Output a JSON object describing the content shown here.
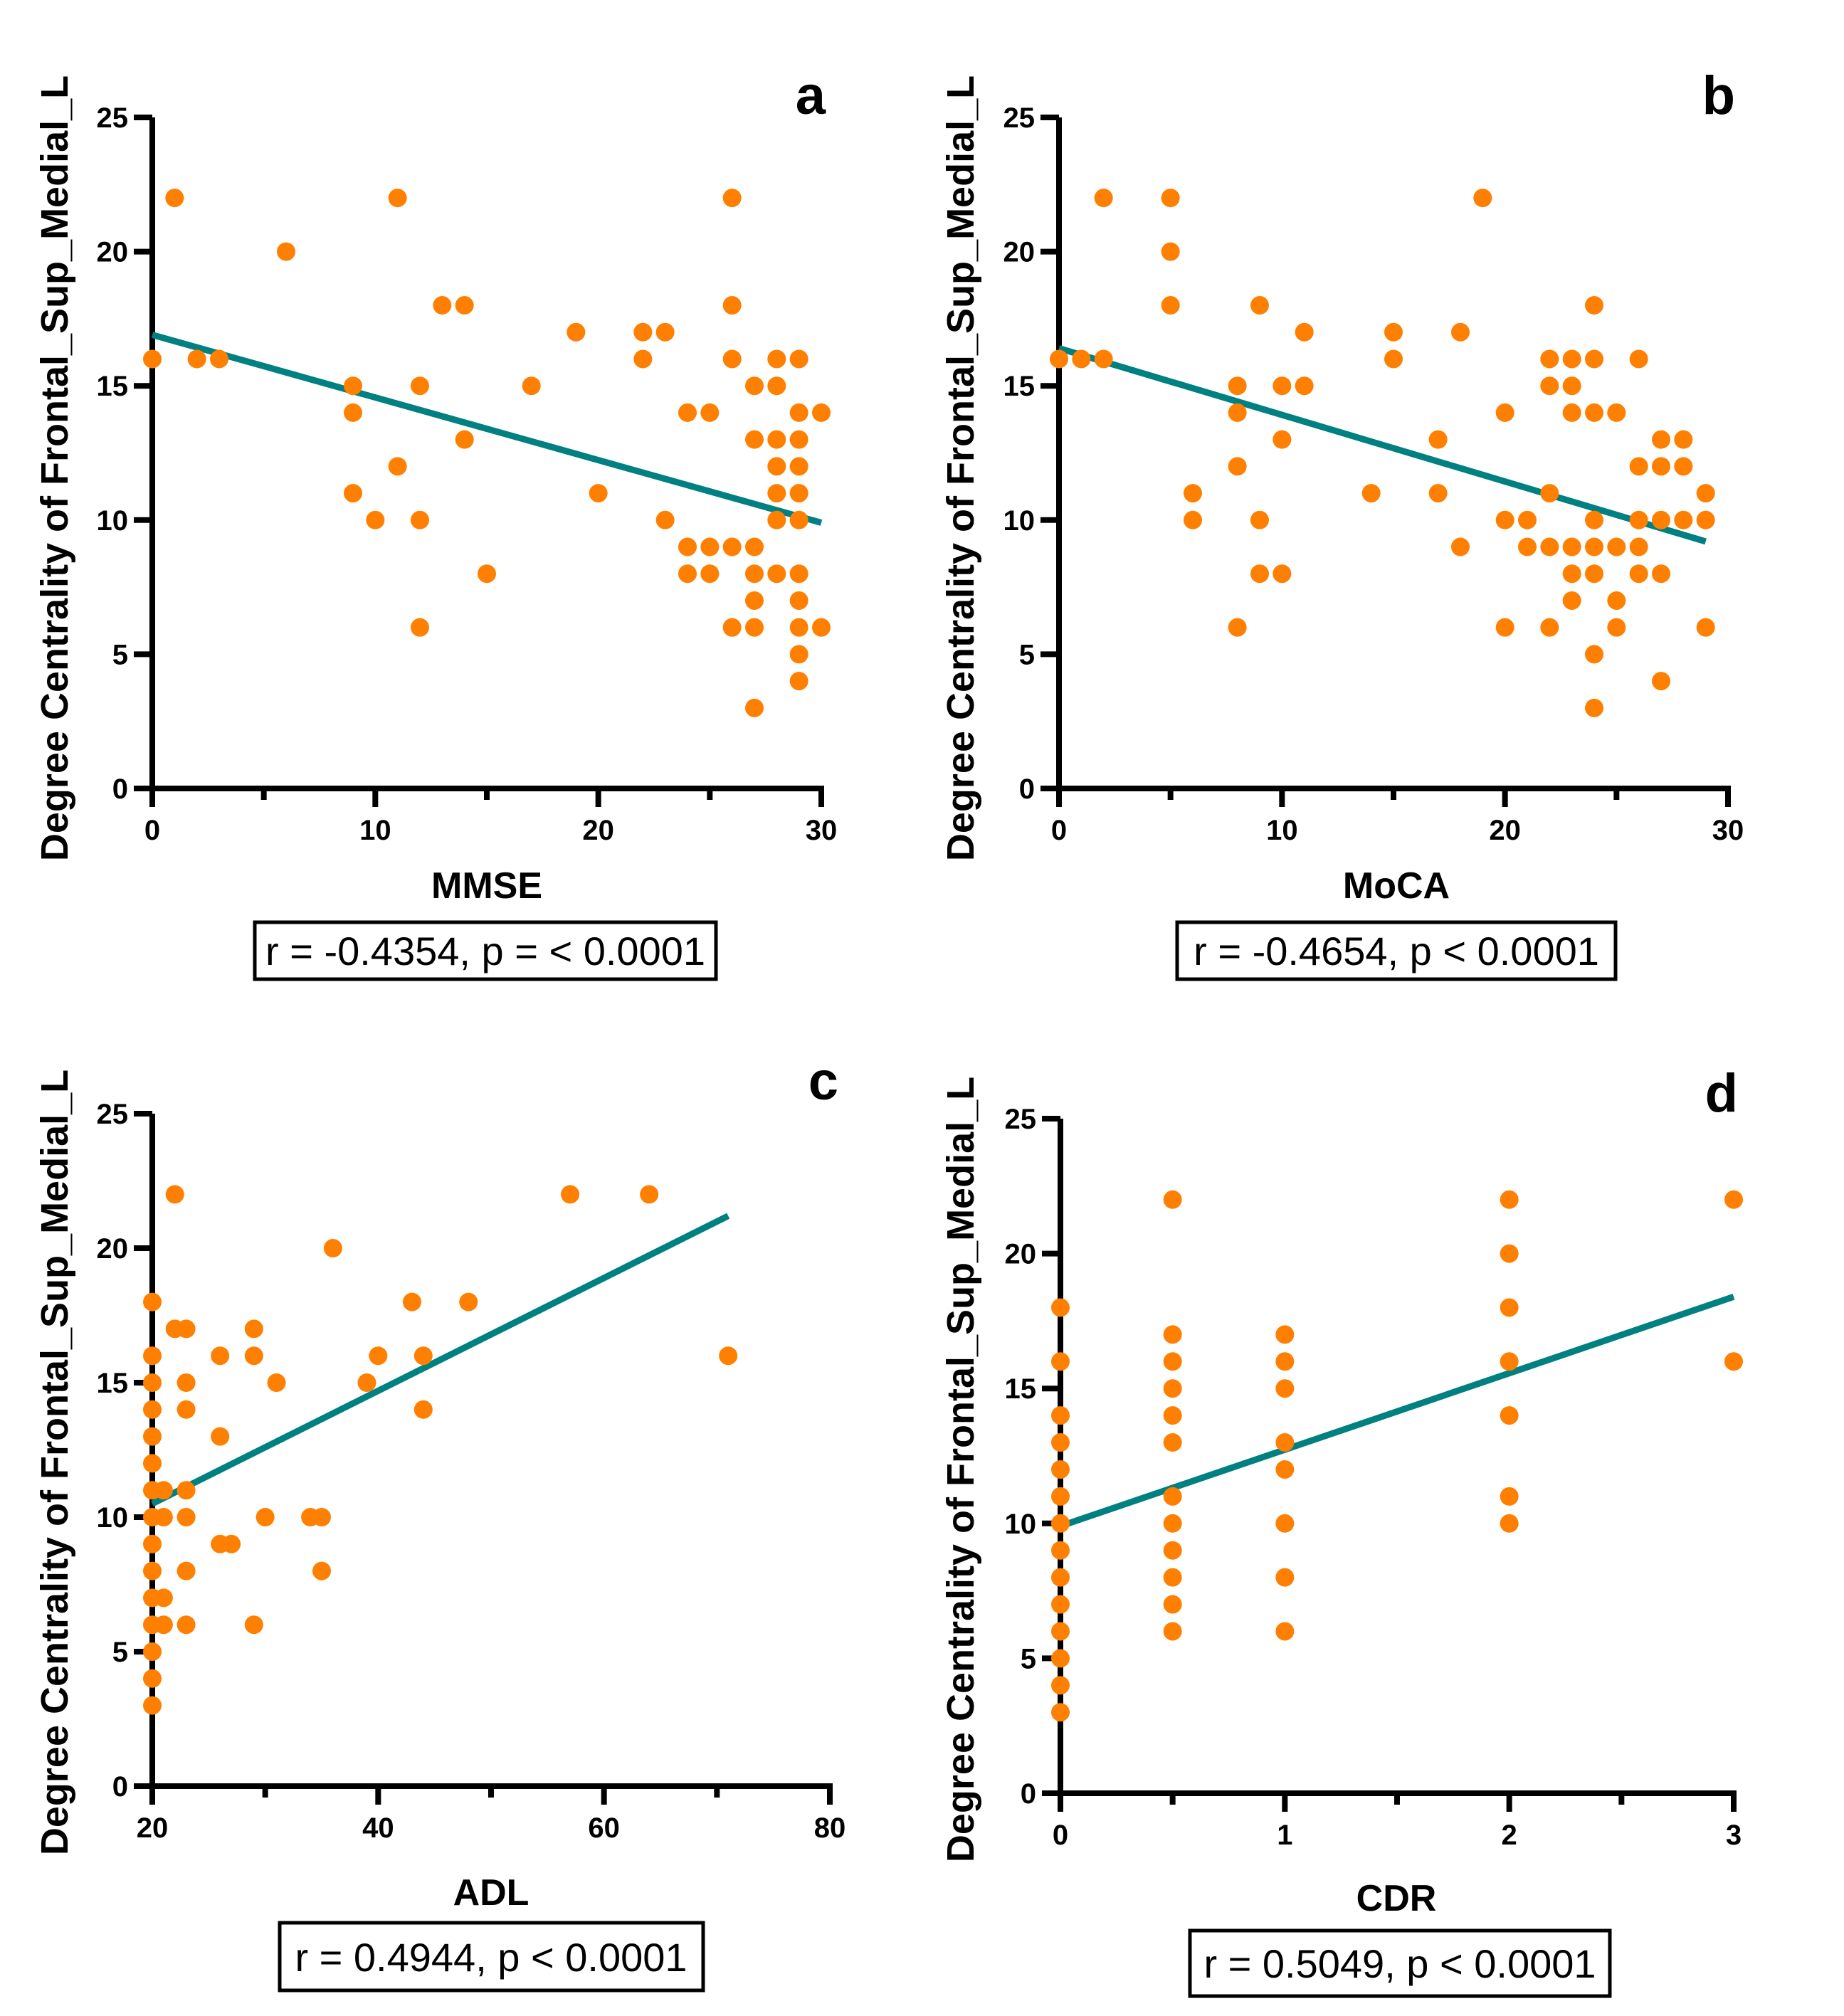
{
  "figure": {
    "colors": {
      "point": "#FF7F00",
      "regression_line": "#008080",
      "axis": "#000000"
    }
  },
  "chart_data": [
    {
      "panel": "a",
      "type": "scatter",
      "title": "",
      "xlabel": "MMSE",
      "ylabel": "Degree Centrality of Frontal_Sup_Medial_L",
      "xlim": [
        0,
        30
      ],
      "ylim": [
        0,
        25
      ],
      "xticks": [
        0,
        10,
        20,
        30
      ],
      "xminor": [
        5,
        15,
        25
      ],
      "yticks": [
        0,
        5,
        10,
        15,
        20,
        25
      ],
      "grid": false,
      "stat": "r = -0.4354, p = < 0.0001",
      "regression": {
        "x": [
          0,
          30
        ],
        "y": [
          16.9,
          9.9
        ]
      },
      "points": [
        [
          0,
          16
        ],
        [
          1,
          22
        ],
        [
          2,
          16
        ],
        [
          3,
          16
        ],
        [
          6,
          20
        ],
        [
          9,
          15
        ],
        [
          9,
          14
        ],
        [
          9,
          11
        ],
        [
          10,
          10
        ],
        [
          11,
          22
        ],
        [
          11,
          12
        ],
        [
          12,
          15
        ],
        [
          12,
          10
        ],
        [
          12,
          6
        ],
        [
          13,
          18
        ],
        [
          14,
          18
        ],
        [
          14,
          13
        ],
        [
          15,
          8
        ],
        [
          17,
          15
        ],
        [
          19,
          17
        ],
        [
          20,
          11
        ],
        [
          22,
          17
        ],
        [
          22,
          16
        ],
        [
          23,
          17
        ],
        [
          23,
          10
        ],
        [
          24,
          14
        ],
        [
          24,
          9
        ],
        [
          24,
          8
        ],
        [
          25,
          14
        ],
        [
          25,
          9
        ],
        [
          25,
          8
        ],
        [
          26,
          22
        ],
        [
          26,
          18
        ],
        [
          26,
          16
        ],
        [
          26,
          9
        ],
        [
          26,
          6
        ],
        [
          27,
          15
        ],
        [
          27,
          13
        ],
        [
          27,
          9
        ],
        [
          27,
          8
        ],
        [
          27,
          7
        ],
        [
          27,
          6
        ],
        [
          27,
          3
        ],
        [
          28,
          16
        ],
        [
          28,
          15
        ],
        [
          28,
          13
        ],
        [
          28,
          12
        ],
        [
          28,
          11
        ],
        [
          28,
          10
        ],
        [
          28,
          8
        ],
        [
          29,
          16
        ],
        [
          29,
          14
        ],
        [
          29,
          13
        ],
        [
          29,
          12
        ],
        [
          29,
          11
        ],
        [
          29,
          10
        ],
        [
          29,
          8
        ],
        [
          29,
          7
        ],
        [
          29,
          6
        ],
        [
          29,
          5
        ],
        [
          29,
          4
        ],
        [
          30,
          14
        ],
        [
          30,
          6
        ]
      ]
    },
    {
      "panel": "b",
      "type": "scatter",
      "title": "",
      "xlabel": "MoCA",
      "ylabel": "Degree Centrality of Frontal_Sup_Medial_L",
      "xlim": [
        0,
        30
      ],
      "ylim": [
        0,
        25
      ],
      "xticks": [
        0,
        10,
        20,
        30
      ],
      "xminor": [
        5,
        15,
        25
      ],
      "yticks": [
        0,
        5,
        10,
        15,
        20,
        25
      ],
      "grid": false,
      "stat": "r = -0.4654, p < 0.0001",
      "regression": {
        "x": [
          0,
          29
        ],
        "y": [
          16.4,
          9.2
        ]
      },
      "points": [
        [
          0,
          16
        ],
        [
          1,
          16
        ],
        [
          2,
          22
        ],
        [
          2,
          16
        ],
        [
          5,
          22
        ],
        [
          5,
          20
        ],
        [
          5,
          18
        ],
        [
          6,
          11
        ],
        [
          6,
          10
        ],
        [
          8,
          15
        ],
        [
          8,
          14
        ],
        [
          8,
          12
        ],
        [
          8,
          6
        ],
        [
          9,
          18
        ],
        [
          9,
          10
        ],
        [
          9,
          8
        ],
        [
          10,
          15
        ],
        [
          10,
          13
        ],
        [
          10,
          8
        ],
        [
          11,
          17
        ],
        [
          11,
          15
        ],
        [
          14,
          11
        ],
        [
          15,
          17
        ],
        [
          15,
          16
        ],
        [
          17,
          13
        ],
        [
          17,
          11
        ],
        [
          18,
          17
        ],
        [
          18,
          9
        ],
        [
          19,
          22
        ],
        [
          20,
          14
        ],
        [
          20,
          10
        ],
        [
          20,
          6
        ],
        [
          21,
          10
        ],
        [
          21,
          9
        ],
        [
          22,
          16
        ],
        [
          22,
          15
        ],
        [
          22,
          11
        ],
        [
          22,
          9
        ],
        [
          22,
          6
        ],
        [
          23,
          16
        ],
        [
          23,
          15
        ],
        [
          23,
          14
        ],
        [
          23,
          9
        ],
        [
          23,
          8
        ],
        [
          23,
          7
        ],
        [
          24,
          18
        ],
        [
          24,
          16
        ],
        [
          24,
          14
        ],
        [
          24,
          10
        ],
        [
          24,
          9
        ],
        [
          24,
          8
        ],
        [
          24,
          5
        ],
        [
          24,
          3
        ],
        [
          25,
          14
        ],
        [
          25,
          9
        ],
        [
          25,
          7
        ],
        [
          25,
          6
        ],
        [
          26,
          16
        ],
        [
          26,
          12
        ],
        [
          26,
          10
        ],
        [
          26,
          9
        ],
        [
          26,
          8
        ],
        [
          27,
          13
        ],
        [
          27,
          12
        ],
        [
          27,
          10
        ],
        [
          27,
          8
        ],
        [
          27,
          4
        ],
        [
          28,
          13
        ],
        [
          28,
          12
        ],
        [
          28,
          10
        ],
        [
          29,
          11
        ],
        [
          29,
          10
        ],
        [
          29,
          6
        ]
      ]
    },
    {
      "panel": "c",
      "type": "scatter",
      "title": "",
      "xlabel": "ADL",
      "ylabel": "Degree Centrality of Frontal_Sup_Medial_L",
      "xlim": [
        20,
        80
      ],
      "ylim": [
        0,
        25
      ],
      "xticks": [
        20,
        40,
        60,
        80
      ],
      "xminor": [
        30,
        50,
        70
      ],
      "yticks": [
        0,
        5,
        10,
        15,
        20,
        25
      ],
      "grid": false,
      "stat": "r = 0.4944, p < 0.0001",
      "regression": {
        "x": [
          20,
          71
        ],
        "y": [
          10.5,
          21.2
        ]
      },
      "points": [
        [
          20,
          18
        ],
        [
          20,
          16
        ],
        [
          20,
          15
        ],
        [
          20,
          14
        ],
        [
          20,
          13
        ],
        [
          20,
          12
        ],
        [
          20,
          11
        ],
        [
          20,
          10
        ],
        [
          20,
          9
        ],
        [
          20,
          8
        ],
        [
          20,
          7
        ],
        [
          20,
          6
        ],
        [
          20,
          5
        ],
        [
          20,
          4
        ],
        [
          20,
          3
        ],
        [
          21,
          11
        ],
        [
          21,
          10
        ],
        [
          21,
          7
        ],
        [
          21,
          6
        ],
        [
          22,
          22
        ],
        [
          22,
          17
        ],
        [
          23,
          17
        ],
        [
          23,
          15
        ],
        [
          23,
          14
        ],
        [
          23,
          11
        ],
        [
          23,
          10
        ],
        [
          23,
          8
        ],
        [
          23,
          6
        ],
        [
          26,
          16
        ],
        [
          26,
          13
        ],
        [
          26,
          9
        ],
        [
          27,
          9
        ],
        [
          29,
          17
        ],
        [
          29,
          16
        ],
        [
          29,
          6
        ],
        [
          30,
          10
        ],
        [
          31,
          15
        ],
        [
          34,
          10
        ],
        [
          35,
          10
        ],
        [
          35,
          8
        ],
        [
          36,
          20
        ],
        [
          39,
          15
        ],
        [
          40,
          16
        ],
        [
          43,
          18
        ],
        [
          44,
          16
        ],
        [
          44,
          14
        ],
        [
          48,
          18
        ],
        [
          57,
          22
        ],
        [
          64,
          22
        ],
        [
          71,
          16
        ]
      ]
    },
    {
      "panel": "d",
      "type": "scatter",
      "title": "",
      "xlabel": "CDR",
      "ylabel": "Degree Centrality of Frontal_Sup_Medial_L",
      "xlim": [
        0,
        3
      ],
      "ylim": [
        0,
        25
      ],
      "xticks": [
        0,
        1,
        2,
        3
      ],
      "xminor": [
        0.5,
        1.5,
        2.5
      ],
      "yticks": [
        0,
        5,
        10,
        15,
        20,
        25
      ],
      "grid": false,
      "stat": "r = 0.5049, p < 0.0001",
      "regression": {
        "x": [
          0,
          3
        ],
        "y": [
          9.9,
          18.4
        ]
      },
      "points": [
        [
          0,
          18
        ],
        [
          0,
          16
        ],
        [
          0,
          14
        ],
        [
          0,
          13
        ],
        [
          0,
          12
        ],
        [
          0,
          11
        ],
        [
          0,
          10
        ],
        [
          0,
          9
        ],
        [
          0,
          8
        ],
        [
          0,
          7
        ],
        [
          0,
          6
        ],
        [
          0,
          5
        ],
        [
          0,
          4
        ],
        [
          0,
          3
        ],
        [
          0.5,
          22
        ],
        [
          0.5,
          17
        ],
        [
          0.5,
          16
        ],
        [
          0.5,
          15
        ],
        [
          0.5,
          14
        ],
        [
          0.5,
          13
        ],
        [
          0.5,
          11
        ],
        [
          0.5,
          10
        ],
        [
          0.5,
          9
        ],
        [
          0.5,
          8
        ],
        [
          0.5,
          7
        ],
        [
          0.5,
          6
        ],
        [
          1,
          17
        ],
        [
          1,
          16
        ],
        [
          1,
          15
        ],
        [
          1,
          13
        ],
        [
          1,
          12
        ],
        [
          1,
          10
        ],
        [
          1,
          8
        ],
        [
          1,
          6
        ],
        [
          2,
          22
        ],
        [
          2,
          20
        ],
        [
          2,
          18
        ],
        [
          2,
          16
        ],
        [
          2,
          14
        ],
        [
          2,
          11
        ],
        [
          2,
          10
        ],
        [
          3,
          22
        ],
        [
          3,
          16
        ]
      ]
    }
  ]
}
